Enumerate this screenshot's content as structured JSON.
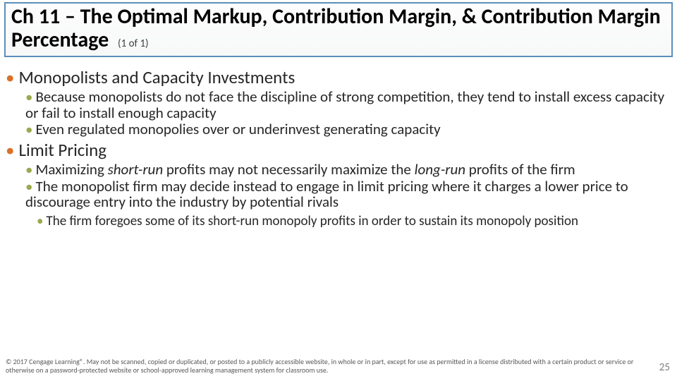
{
  "title": "Ch 11 – The Optimal Markup, Contribution Margin, & Contribution Margin Percentage",
  "pager": "(1 of 1)",
  "sections": {
    "s1": {
      "heading": "Monopolists and Capacity Investments",
      "b1": "Because monopolists do not face the discipline of strong competition, they tend to install excess capacity or fail to install enough capacity",
      "b2": "Even regulated monopolies over or underinvest generating capacity"
    },
    "s2": {
      "heading": "Limit Pricing",
      "b1a": "Maximizing ",
      "b1b": "short-run",
      "b1c": " profits may not necessarily maximize the ",
      "b1d": "long-run",
      "b1e": " profits of the firm",
      "b2": "The monopolist firm may decide instead to engage in limit pricing where it charges a lower price to discourage entry into the industry by potential rivals",
      "c1": "The firm foregoes some of its short-run monopoly profits in order to sustain its monopoly position"
    }
  },
  "footer": "© 2017 Cengage Learning®. May not be scanned, copied or duplicated, or posted to a publicly accessible website, in whole or in part, except for use as permitted in a license distributed with a certain product or service or otherwise on a password-protected website or school-approved learning management system for classroom use.",
  "page_number": "25",
  "colors": {
    "border": "#5b8fba",
    "bullet_lvl1": "#da7127",
    "bullet_lvl2": "#9aa94e"
  }
}
